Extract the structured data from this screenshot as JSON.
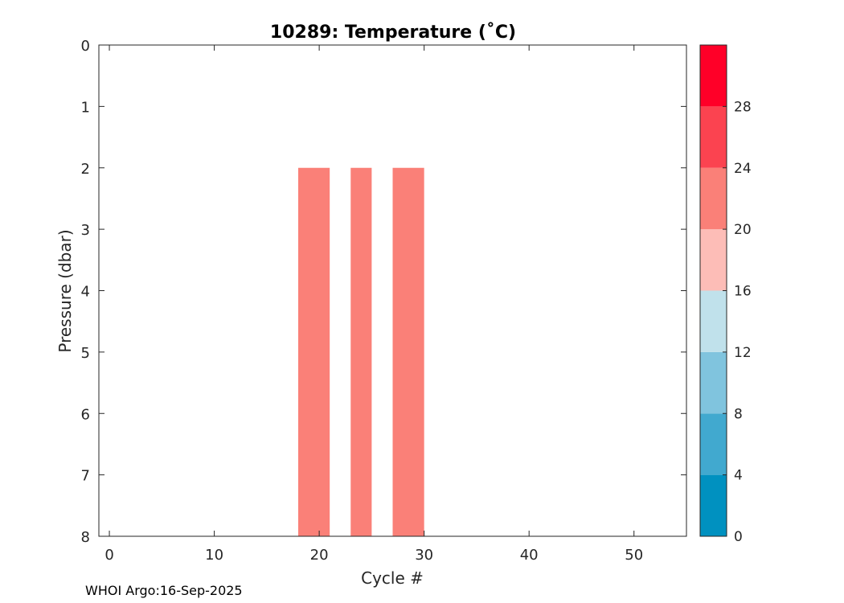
{
  "chart_data": {
    "type": "heatmap",
    "title": "10289:  Temperature (˚C)",
    "xlabel": "Cycle #",
    "ylabel": "Pressure (dbar)",
    "xlim": [
      -1,
      55
    ],
    "ylim": [
      0,
      8
    ],
    "y_direction": "reversed",
    "xticks": [
      0,
      10,
      20,
      30,
      40,
      50
    ],
    "yticks": [
      0,
      1,
      2,
      3,
      4,
      5,
      6,
      7,
      8
    ],
    "cells": [
      {
        "cycle_start": 18,
        "cycle_end": 21,
        "pressure_top": 2,
        "pressure_bottom": 8,
        "temperature_bin": "20-24",
        "color": "#fa8078"
      },
      {
        "cycle_start": 23,
        "cycle_end": 25,
        "pressure_top": 2,
        "pressure_bottom": 8,
        "temperature_bin": "20-24",
        "color": "#fa8078"
      },
      {
        "cycle_start": 27,
        "cycle_end": 30,
        "pressure_top": 2,
        "pressure_bottom": 8,
        "temperature_bin": "20-24",
        "color": "#fa8078"
      }
    ],
    "colorbar": {
      "range": [
        0,
        32
      ],
      "tick_labels": [
        "0",
        "4",
        "8",
        "12",
        "16",
        "20",
        "24",
        "28"
      ],
      "bins": [
        {
          "from": 0,
          "to": 4,
          "color": "#0091c0"
        },
        {
          "from": 4,
          "to": 8,
          "color": "#41a9cf"
        },
        {
          "from": 8,
          "to": 12,
          "color": "#80c4de"
        },
        {
          "from": 12,
          "to": 16,
          "color": "#c0e1eb"
        },
        {
          "from": 16,
          "to": 20,
          "color": "#fdbdb7"
        },
        {
          "from": 20,
          "to": 24,
          "color": "#fa8078"
        },
        {
          "from": 24,
          "to": 28,
          "color": "#fb4350"
        },
        {
          "from": 28,
          "to": 32,
          "color": "#ff0028"
        }
      ]
    }
  },
  "footer": "WHOI Argo:16-Sep-2025"
}
